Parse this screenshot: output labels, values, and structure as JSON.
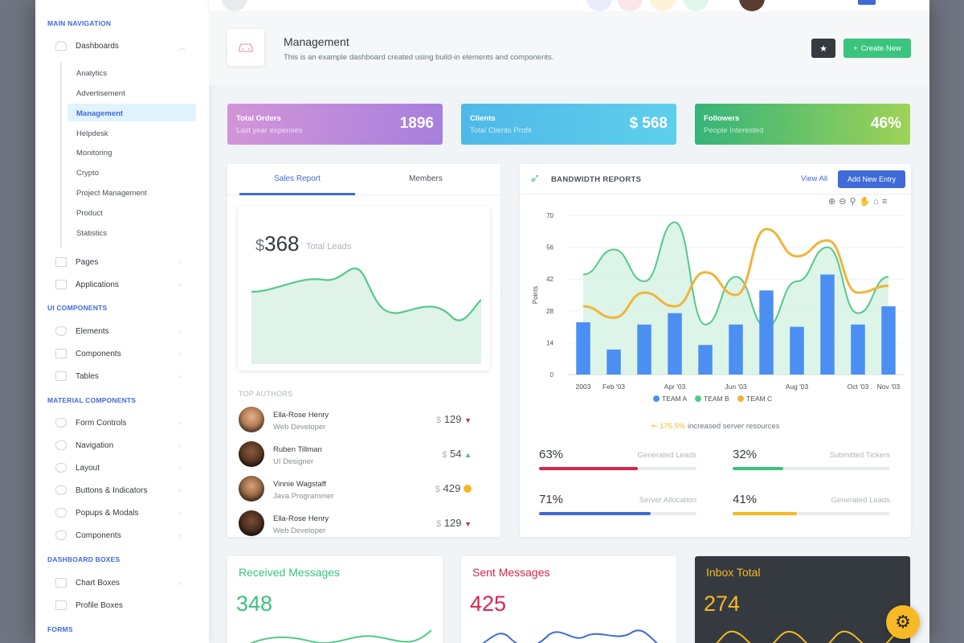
{
  "sidebar": {
    "sections": {
      "main": "MAIN NAVIGATION",
      "ui": "UI COMPONENTS",
      "material": "MATERIAL COMPONENTS",
      "boxes": "DASHBOARD BOXES",
      "forms": "FORMS"
    },
    "dashboards": "Dashboards",
    "dash_items": [
      "Analytics",
      "Advertisement",
      "Management",
      "Helpdesk",
      "Monitoring",
      "Crypto",
      "Project Management",
      "Product",
      "Statistics"
    ],
    "pages": "Pages",
    "applications": "Applications",
    "ui_items": [
      "Elements",
      "Components",
      "Tables"
    ],
    "material_items": [
      "Form Controls",
      "Navigation",
      "Layout",
      "Buttons & Indicators",
      "Popups & Modals",
      "Components"
    ],
    "box_items": [
      "Chart Boxes",
      "Profile Boxes"
    ]
  },
  "header": {
    "title": "Management",
    "subtitle": "This is an example dashboard created using build-in elements and components.",
    "create_label": "Create New"
  },
  "tiles": [
    {
      "title": "Total Orders",
      "sub": "Last year expenses",
      "value": "1896"
    },
    {
      "title": "Clients",
      "sub": "Total Clients Profit",
      "value": "$ 568"
    },
    {
      "title": "Followers",
      "sub": "People Interested",
      "value": "46%"
    }
  ],
  "sales": {
    "tabs": [
      "Sales Report",
      "Members"
    ],
    "currency": "$",
    "leads": "368",
    "leads_label": "Total Leads",
    "authors_header": "TOP AUTHORS",
    "authors": [
      {
        "name": "Ella-Rose Henry",
        "role": "Web Developer",
        "currency": "$",
        "value": "129",
        "trend": "down"
      },
      {
        "name": "Ruben Tillman",
        "role": "UI Designer",
        "currency": "$",
        "value": "54",
        "trend": "up"
      },
      {
        "name": "Vinnie Wagstaff",
        "role": "Java Programmer",
        "currency": "$",
        "value": "429",
        "trend": "dot"
      },
      {
        "name": "Ella-Rose Henry",
        "role": "Web Developer",
        "currency": "$",
        "value": "129",
        "trend": "down"
      }
    ]
  },
  "bandwidth": {
    "title": "BANDWIDTH REPORTS",
    "view_all": "View All",
    "add_new": "Add New Entry",
    "note_value": "175.5%",
    "note_text": "increased server resources",
    "progress": [
      {
        "value": "63%",
        "label": "Generated Leads",
        "pct": 63,
        "color": "#d92550"
      },
      {
        "value": "32%",
        "label": "Submitted Tickers",
        "pct": 32,
        "color": "#3ac47d"
      },
      {
        "value": "71%",
        "label": "Server Allocation",
        "pct": 71,
        "color": "#3f6ad8"
      },
      {
        "value": "41%",
        "label": "Generated Leads",
        "pct": 41,
        "color": "#f7b924"
      }
    ]
  },
  "chart_data": {
    "type": "bar",
    "ylabel": "Points",
    "ylim": [
      0,
      70
    ],
    "yticks": [
      "0",
      "14",
      "28",
      "42",
      "56",
      "70"
    ],
    "xticks": [
      "2003",
      "Feb '03",
      "Apr '03",
      "Jun '03",
      "Aug '03",
      "Oct '03",
      "Nov '03"
    ],
    "legend": "bottom",
    "series": [
      {
        "name": "TEAM A",
        "type": "bar",
        "color": "#4c8ff2",
        "values": [
          23,
          11,
          22,
          27,
          13,
          22,
          37,
          21,
          44,
          22,
          30
        ]
      },
      {
        "name": "TEAM B",
        "type": "area",
        "color": "#54c98a",
        "values": [
          44,
          55,
          41,
          67,
          22,
          43,
          21,
          41,
          56,
          27,
          43
        ]
      },
      {
        "name": "TEAM C",
        "type": "line",
        "color": "#f0b43a",
        "values": [
          30,
          25,
          36,
          30,
          45,
          35,
          64,
          52,
          59,
          36,
          39
        ]
      }
    ]
  },
  "messages": [
    {
      "title": "Received Messages",
      "value": "348",
      "color": "#3ac47d"
    },
    {
      "title": "Sent Messages",
      "value": "425",
      "color": "#d92550"
    },
    {
      "title": "Inbox Total",
      "value": "274",
      "color": "#f7b924"
    }
  ]
}
